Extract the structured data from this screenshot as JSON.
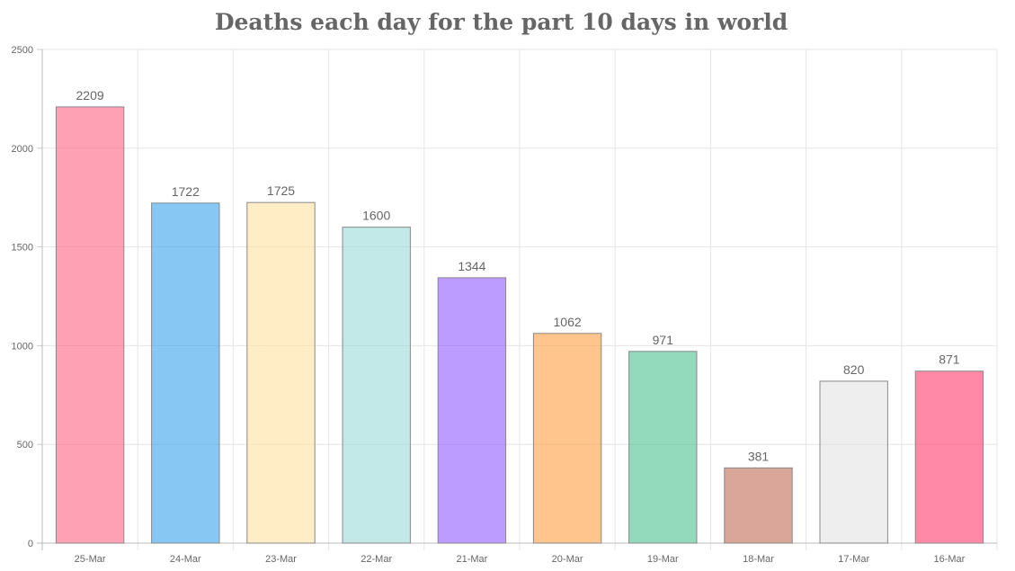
{
  "chart_data": {
    "type": "bar",
    "title": "Deaths each day for the part 10 days in world",
    "xlabel": "",
    "ylabel": "",
    "categories": [
      "25-Mar",
      "24-Mar",
      "23-Mar",
      "22-Mar",
      "21-Mar",
      "20-Mar",
      "19-Mar",
      "18-Mar",
      "17-Mar",
      "16-Mar"
    ],
    "values": [
      2209,
      1722,
      1725,
      1600,
      1344,
      1062,
      971,
      381,
      820,
      871
    ],
    "ylim": [
      0,
      2500
    ],
    "yticks": [
      0,
      500,
      1000,
      1500,
      2000,
      2500
    ],
    "grid": true,
    "legend": "none",
    "colors": [
      "#ff6384",
      "#36a2eb",
      "#ffe29f",
      "#9ad9d9",
      "#8f5cff",
      "#ff9f40",
      "#4bbf8f",
      "#c26a56",
      "#e3e3e3",
      "#ff3a6a"
    ]
  }
}
